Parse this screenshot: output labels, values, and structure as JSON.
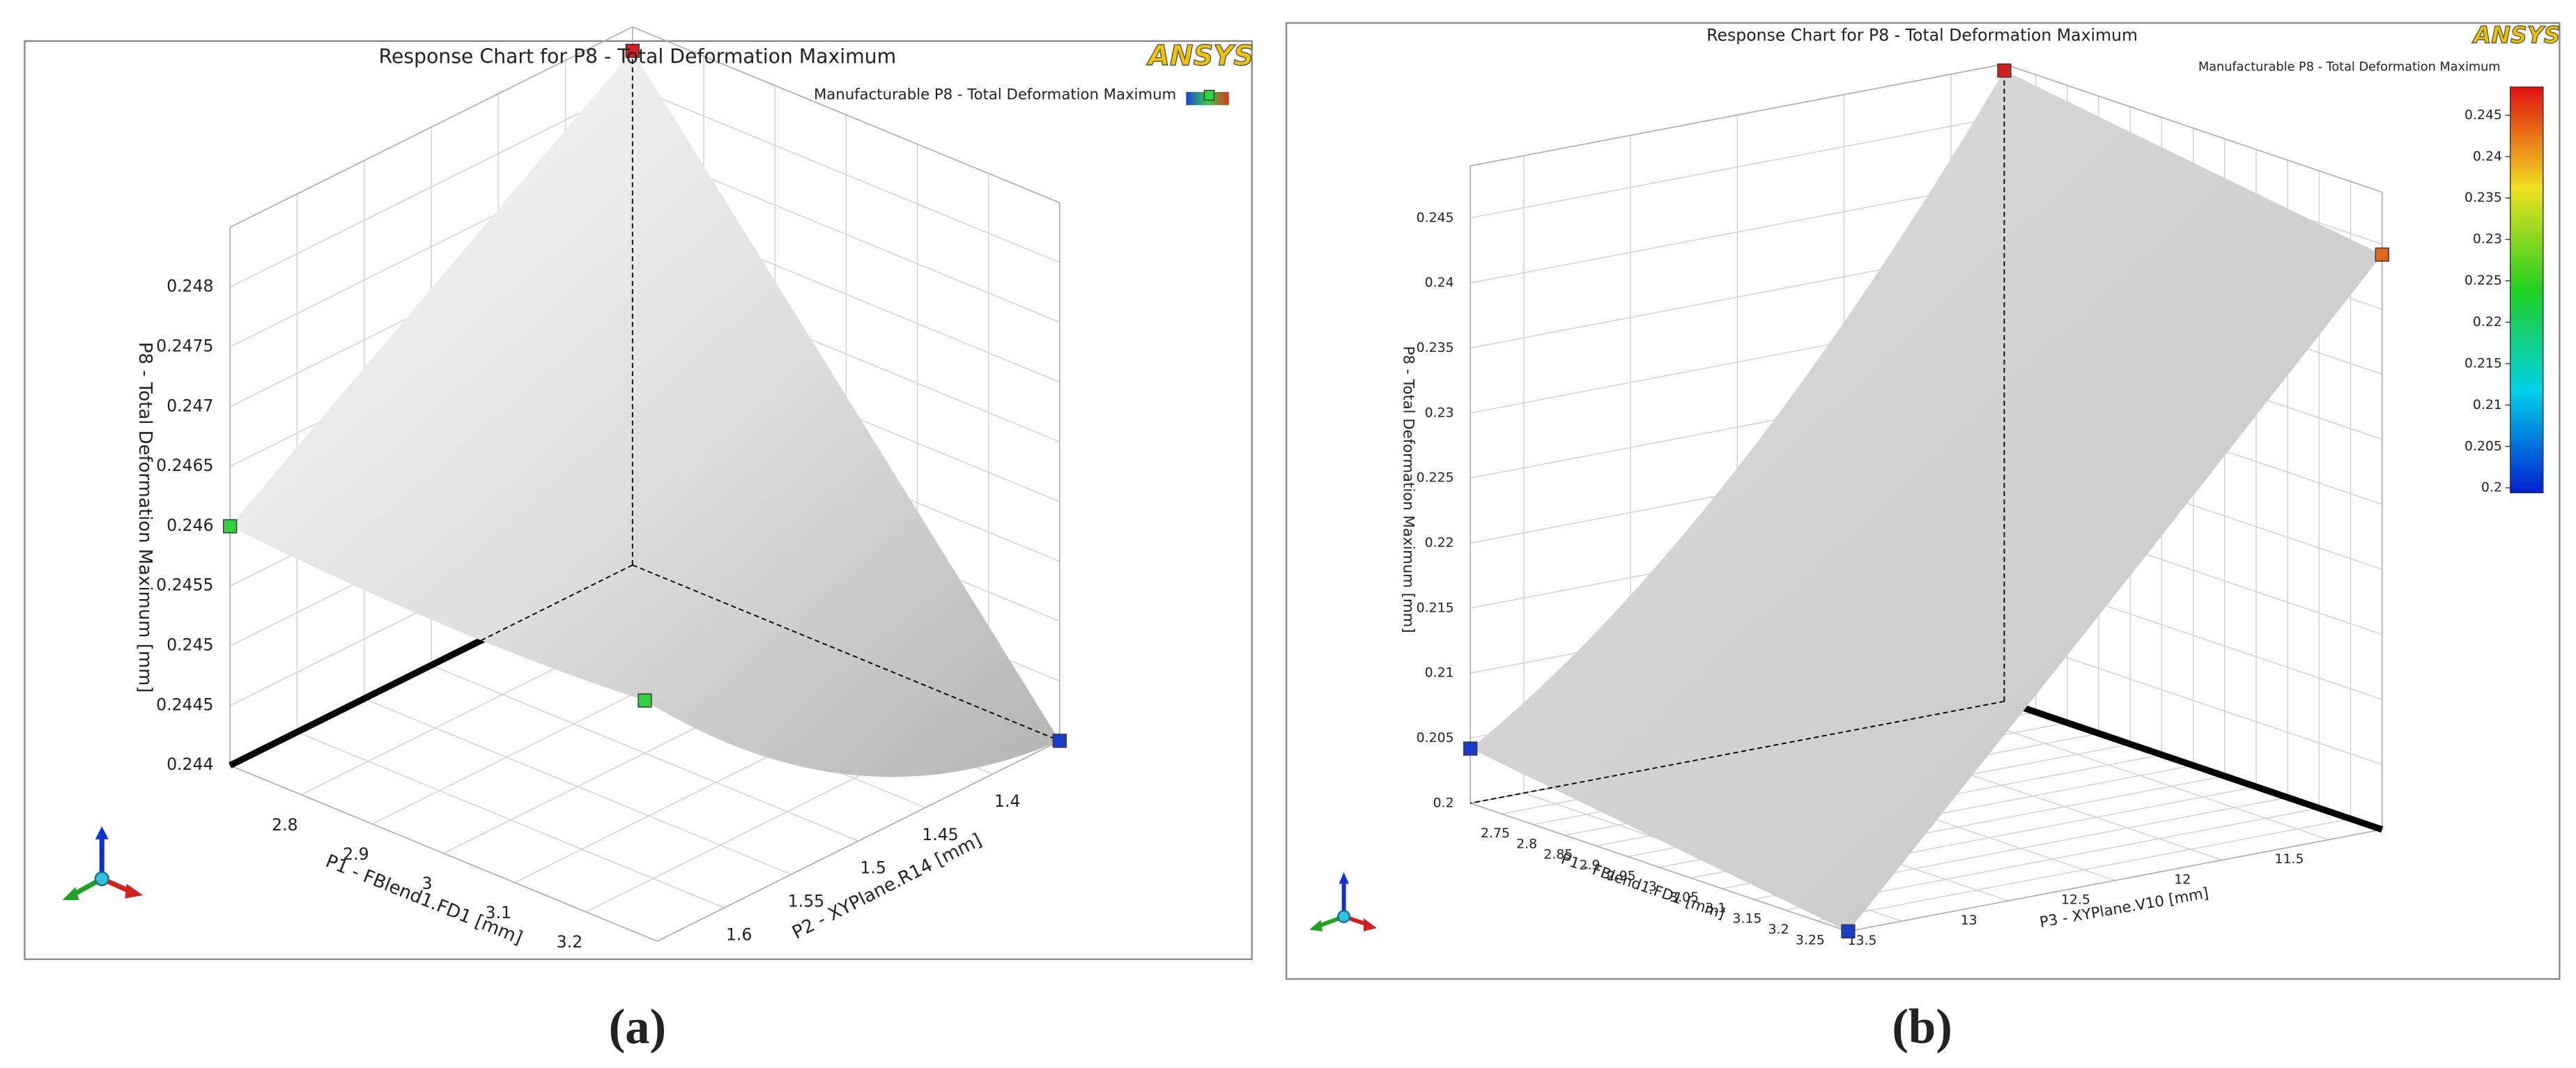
{
  "chart_data": [
    {
      "type": "surface3d",
      "title": "Response Chart for P8 - Total Deformation Maximum",
      "logo": "ANSYS",
      "legend": "Manufacturable P8 - Total Deformation Maximum",
      "caption": "(a)",
      "xlabel": "P1 - FBlend1.FD1  [mm]",
      "ylabel": "P2 - XYPlane.R14  [mm]",
      "zlabel": "P8 - Total Deformation Maximum  [mm]",
      "xlim": [
        2.7,
        3.3
      ],
      "xticks": [
        2.8,
        2.9,
        3,
        3.1,
        3.2
      ],
      "ylim": [
        1.35,
        1.65
      ],
      "yticks": [
        1.4,
        1.45,
        1.5,
        1.55,
        1.6
      ],
      "zlim": [
        0.244,
        0.2485
      ],
      "zticks": [
        0.244,
        0.2445,
        0.245,
        0.2455,
        0.246,
        0.2465,
        0.247,
        0.2475,
        0.248
      ],
      "points": {
        "x": [
          2.7,
          2.7,
          3.0,
          3.3
        ],
        "y": [
          1.35,
          1.65,
          1.5,
          1.35
        ],
        "z": [
          0.2483,
          0.246,
          0.24444,
          0.244
        ],
        "colors": [
          "#d42020",
          "#30d040",
          "#30d040",
          "#1c3cc8"
        ]
      }
    },
    {
      "type": "surface3d",
      "title": "Response Chart for P8 - Total Deformation Maximum",
      "logo": "ANSYS",
      "legend": "Manufacturable P8 - Total Deformation Maximum",
      "caption": "(b)",
      "xlabel": "P1 - FBlend1.FD1  [mm]",
      "ylabel": "P3 - XYPlane.V10  [mm]",
      "zlabel": "P8 - Total Deformation Maximum  [mm]",
      "xlim": [
        2.7,
        3.3
      ],
      "xticks": [
        2.75,
        2.8,
        2.85,
        2.9,
        2.95,
        3,
        3.05,
        3.1,
        3.15,
        3.2,
        3.25
      ],
      "ylim": [
        11.25,
        13.75
      ],
      "yticks": [
        11.5,
        12,
        12.5,
        13,
        13.5
      ],
      "zlim": [
        0.2,
        0.249
      ],
      "zticks": [
        0.2,
        0.205,
        0.21,
        0.215,
        0.22,
        0.225,
        0.23,
        0.235,
        0.24,
        0.245
      ],
      "clim": [
        0.1994,
        0.2484
      ],
      "cticks": [
        0.2,
        0.205,
        0.21,
        0.215,
        0.22,
        0.225,
        0.23,
        0.235,
        0.24,
        0.245
      ],
      "points": {
        "x": [
          2.7,
          3.3,
          3.3,
          2.7
        ],
        "y": [
          11.25,
          11.25,
          13.75,
          13.75
        ],
        "z": [
          0.2485,
          0.2442,
          0.2,
          0.2042
        ],
        "colors": [
          "#d42020",
          "#e0651e",
          "#1c3cc8",
          "#1c3cc8"
        ]
      }
    }
  ]
}
